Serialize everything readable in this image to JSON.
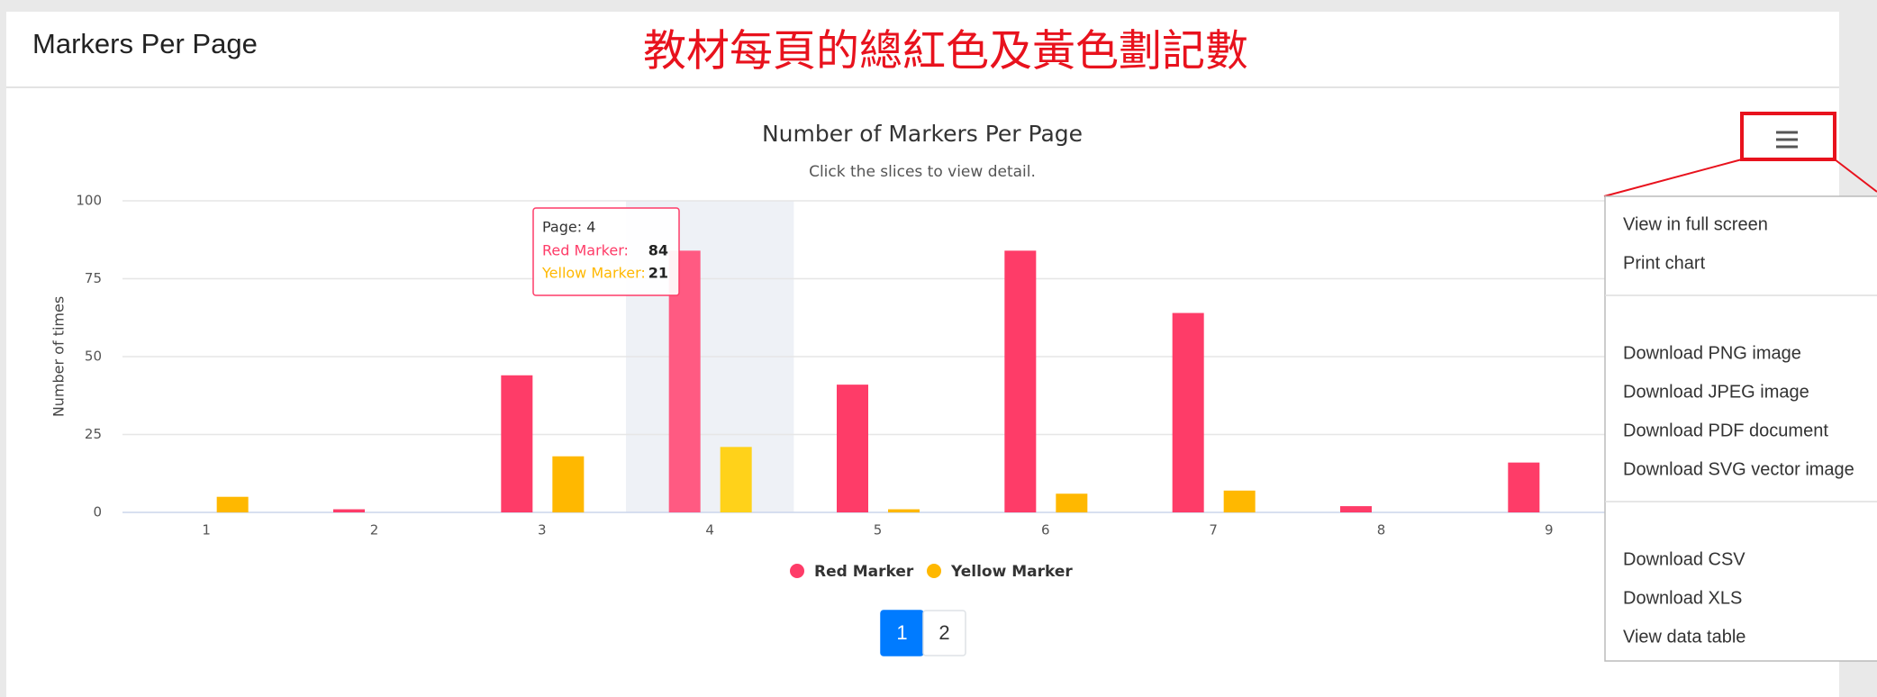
{
  "header": {
    "title": "Markers Per Page",
    "annotation": "教材每頁的總紅色及黃色劃記數"
  },
  "chart_data": {
    "type": "bar",
    "title": "Number of Markers Per Page",
    "subtitle": "Click the slices to view detail.",
    "y_label": "Number of times",
    "categories": [
      "1",
      "2",
      "3",
      "4",
      "5",
      "6",
      "7",
      "8",
      "9"
    ],
    "series": [
      {
        "name": "Red Marker",
        "color": "#fe3c68",
        "values": [
          0,
          1,
          44,
          84,
          41,
          84,
          64,
          2,
          16
        ]
      },
      {
        "name": "Yellow Marker",
        "color": "#ffb800",
        "values": [
          5,
          0,
          18,
          21,
          1,
          6,
          7,
          0,
          0
        ]
      }
    ],
    "ylim": [
      0,
      100
    ],
    "yticks": [
      0,
      25,
      50,
      75,
      100
    ],
    "grid": true,
    "legend": "bottom"
  },
  "tooltip": {
    "header": "Page: 4",
    "rows": [
      "Red Marker:",
      "Yellow Marker:"
    ]
  },
  "pagination": [
    "1",
    "2"
  ],
  "menu": {
    "groups": [
      [
        "View in full screen",
        "Print chart"
      ],
      [
        "Download PNG image",
        "Download JPEG image",
        "Download PDF document",
        "Download SVG vector image"
      ],
      [
        "Download CSV",
        "Download XLS",
        "View data table"
      ]
    ]
  }
}
